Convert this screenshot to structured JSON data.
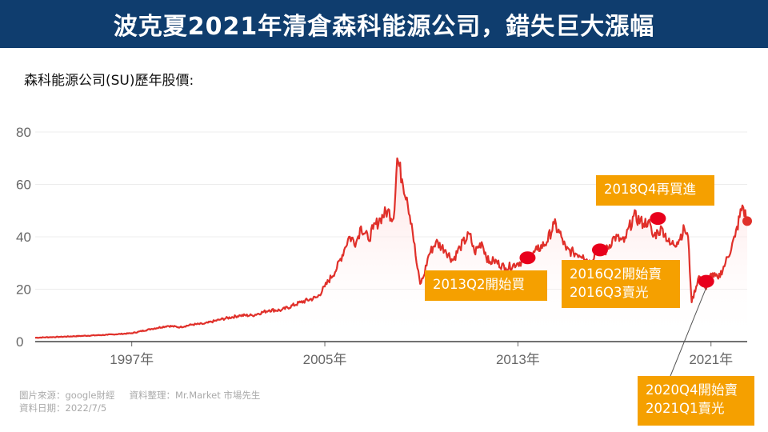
{
  "header": {
    "title": "波克夏2021年清倉森科能源公司，錯失巨大漲幅"
  },
  "subtitle": "森科能源公司(SU)歷年股價:",
  "colors": {
    "banner": "#0f3d6e",
    "line": "#e0302a",
    "marker": "#e8001c",
    "callout": "#f5a000"
  },
  "chart_data": {
    "type": "area",
    "x_ticks": [
      "1997年",
      "2005年",
      "2013年",
      "2021年"
    ],
    "y_ticks": [
      0,
      20,
      40,
      60,
      80
    ],
    "ylim": [
      0,
      80
    ],
    "xlim": [
      1993.0,
      2022.5
    ],
    "grid": true,
    "series": [
      {
        "x": [
          1993.0,
          1994.0,
          1995.0,
          1996.0,
          1997.0,
          1997.8,
          1998.5,
          1999.0,
          1999.5,
          2000.0,
          2000.7,
          2001.5,
          2002.0,
          2002.7,
          2003.2,
          2004.0,
          2004.7,
          2005.0,
          2005.5,
          2005.8,
          2006.0,
          2006.3,
          2006.5,
          2006.8,
          2007.0,
          2007.3,
          2007.6,
          2007.85,
          2008.0,
          2008.2,
          2008.4,
          2008.6,
          2008.8,
          2008.95,
          2009.1,
          2009.3,
          2009.6,
          2010.0,
          2010.3,
          2010.6,
          2011.0,
          2011.2,
          2011.5,
          2011.8,
          2012.0,
          2012.5,
          2013.0,
          2013.5,
          2013.8,
          2014.2,
          2014.5,
          2014.8,
          2015.0,
          2015.3,
          2015.7,
          2016.0,
          2016.3,
          2016.6,
          2017.0,
          2017.4,
          2017.8,
          2018.2,
          2018.4,
          2018.6,
          2018.8,
          2019.0,
          2019.3,
          2019.6,
          2019.9,
          2020.05,
          2020.2,
          2020.5,
          2020.8,
          2021.0,
          2021.3,
          2021.6,
          2022.0,
          2022.3,
          2022.5
        ],
        "y": [
          1.5,
          1.8,
          2.2,
          2.6,
          3.2,
          4.8,
          6.0,
          5.5,
          6.5,
          6.8,
          8.5,
          10,
          10,
          12,
          12,
          15,
          17,
          21,
          28,
          35,
          40,
          38,
          44,
          39,
          43,
          47,
          50,
          47,
          70,
          62,
          55,
          45,
          30,
          22,
          25,
          33,
          38,
          35,
          31,
          36,
          41,
          34,
          38,
          30,
          31,
          28,
          30,
          32,
          35,
          38,
          45,
          40,
          35,
          34,
          33,
          30,
          36,
          34,
          40,
          38,
          48,
          45,
          46,
          40,
          42,
          43,
          37,
          38,
          43,
          40,
          15,
          25,
          20,
          26,
          24,
          30,
          40,
          52,
          46
        ]
      }
    ]
  },
  "annotations": [
    {
      "label_lines": [
        "2013Q2開始買"
      ],
      "x": 2013.4,
      "y": 32
    },
    {
      "label_lines": [
        "2016Q2開始賣",
        "2016Q3賣光"
      ],
      "x": 2016.4,
      "y": 35
    },
    {
      "label_lines": [
        "2018Q4再買進"
      ],
      "x": 2018.8,
      "y": 47
    },
    {
      "label_lines": [
        "2020Q4開始賣",
        "2021Q1賣光"
      ],
      "x": 2020.8,
      "y": 23
    }
  ],
  "footer": {
    "source": "圖片來源：google財經",
    "compiled": "資料整理：Mr.Market  市場先生",
    "date": "資料日期：2022/7/5"
  }
}
